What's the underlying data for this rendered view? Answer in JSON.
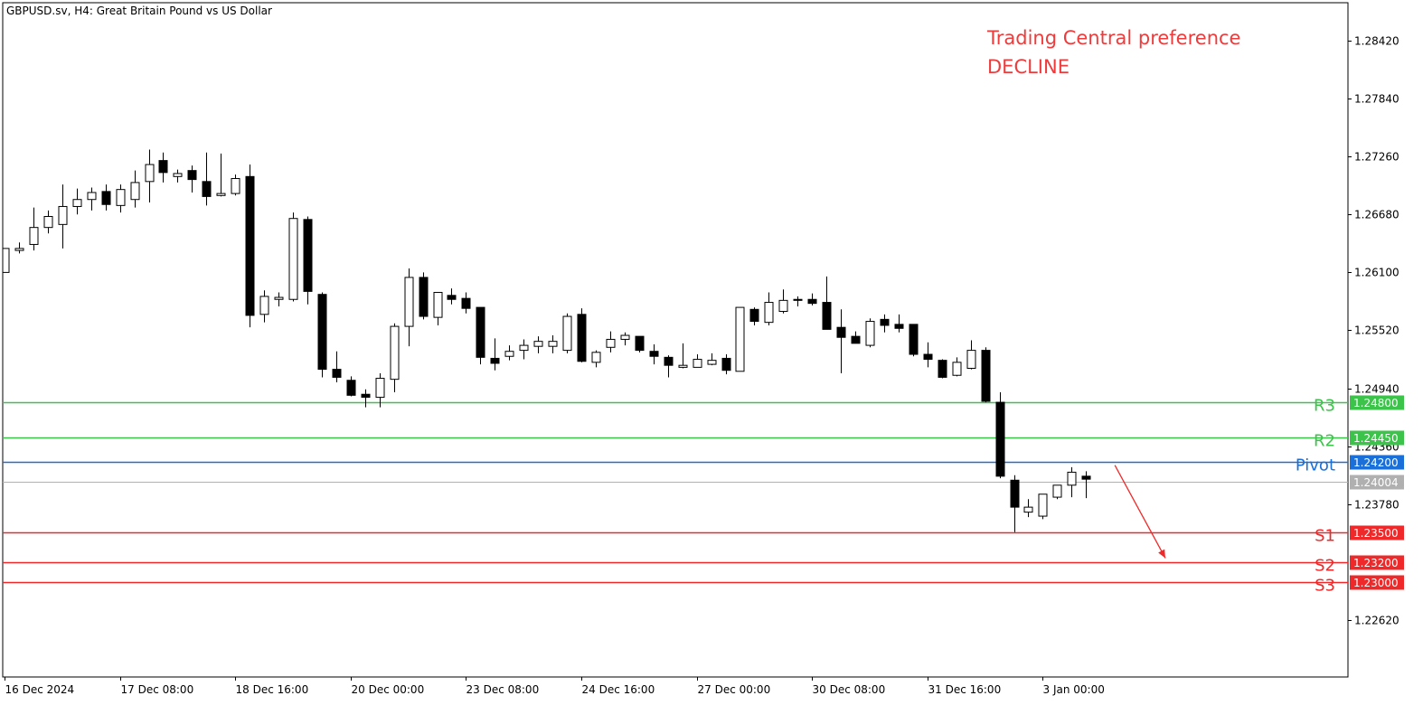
{
  "header": {
    "symbol_title": "GBPUSD.sv, H4:  Great Britain Pound vs US Dollar",
    "preference_title": "Trading Central preference",
    "preference_value": "DECLINE"
  },
  "colors": {
    "resistance": "#3cc34a",
    "pivot": "#1a6fd8",
    "support": "#ef2929",
    "current": "#b0b0b0",
    "arrow": "#ef2929",
    "preference_text": "#ef3b3b"
  },
  "chart_data": {
    "type": "candlestick",
    "symbol": "GBPUSD.sv",
    "timeframe": "H4",
    "y_ticks": [
      "1.28420",
      "1.27840",
      "1.27260",
      "1.26680",
      "1.26100",
      "1.25520",
      "1.24940",
      "1.24360",
      "1.23780",
      "1.22620"
    ],
    "ylim": [
      1.22,
      1.288
    ],
    "x_tick_labels": [
      "16 Dec 2024",
      "17 Dec 08:00",
      "18 Dec 16:00",
      "20 Dec 00:00",
      "23 Dec 08:00",
      "24 Dec 16:00",
      "27 Dec 00:00",
      "30 Dec 08:00",
      "31 Dec 16:00",
      "3 Jan 00:00"
    ],
    "x_tick_bar_index": [
      0,
      8,
      16,
      24,
      32,
      40,
      48,
      56,
      64,
      72
    ],
    "levels": [
      {
        "label": "R3",
        "value": 1.248,
        "value_label": "1.24800",
        "kind": "resistance"
      },
      {
        "label": "R2",
        "value": 1.2445,
        "value_label": "1.24450",
        "kind": "resistance"
      },
      {
        "label": "Pivot",
        "value": 1.242,
        "value_label": "1.24200",
        "kind": "pivot"
      },
      {
        "label": "",
        "value": 1.24004,
        "value_label": "1.24004",
        "kind": "current"
      },
      {
        "label": "S1",
        "value": 1.235,
        "value_label": "1.23500",
        "kind": "support"
      },
      {
        "label": "S2",
        "value": 1.232,
        "value_label": "1.23200",
        "kind": "support"
      },
      {
        "label": "S3",
        "value": 1.23,
        "value_label": "1.23000",
        "kind": "support"
      }
    ],
    "forecast_arrow": {
      "from_bar": 77,
      "from_value": 1.2417,
      "to_bar": 80.5,
      "to_value": 1.2324
    },
    "ohlc": [
      [
        1.261,
        1.2634,
        1.261,
        1.2634
      ],
      [
        1.2632,
        1.264,
        1.2629,
        1.2634
      ],
      [
        1.2638,
        1.2675,
        1.2632,
        1.2655
      ],
      [
        1.2655,
        1.2672,
        1.2649,
        1.2666
      ],
      [
        1.2658,
        1.2698,
        1.2634,
        1.2676
      ],
      [
        1.2676,
        1.2694,
        1.2668,
        1.2683
      ],
      [
        1.2683,
        1.2695,
        1.2672,
        1.269
      ],
      [
        1.2691,
        1.2698,
        1.2672,
        1.2678
      ],
      [
        1.2677,
        1.2698,
        1.267,
        1.2693
      ],
      [
        1.2683,
        1.2712,
        1.2675,
        1.27
      ],
      [
        1.2701,
        1.2733,
        1.268,
        1.2718
      ],
      [
        1.2722,
        1.273,
        1.27,
        1.271
      ],
      [
        1.2706,
        1.2713,
        1.27,
        1.2709
      ],
      [
        1.2712,
        1.2717,
        1.269,
        1.2703
      ],
      [
        1.2701,
        1.273,
        1.2677,
        1.2686
      ],
      [
        1.2687,
        1.2729,
        1.2686,
        1.2689
      ],
      [
        1.2689,
        1.2708,
        1.2687,
        1.2704
      ],
      [
        1.2706,
        1.2718,
        1.2555,
        1.2567
      ],
      [
        1.2568,
        1.2592,
        1.256,
        1.2586
      ],
      [
        1.2583,
        1.259,
        1.2576,
        1.2585
      ],
      [
        1.2583,
        1.267,
        1.2581,
        1.2664
      ],
      [
        1.2663,
        1.2666,
        1.2578,
        1.2591
      ],
      [
        1.2588,
        1.259,
        1.2505,
        1.2513
      ],
      [
        1.2513,
        1.2531,
        1.25,
        1.2505
      ],
      [
        1.2502,
        1.2506,
        1.2486,
        1.2487
      ],
      [
        1.2488,
        1.2493,
        1.2475,
        1.2485
      ],
      [
        1.2485,
        1.2509,
        1.2475,
        1.2504
      ],
      [
        1.2503,
        1.2559,
        1.249,
        1.2556
      ],
      [
        1.2556,
        1.2614,
        1.2536,
        1.2605
      ],
      [
        1.2605,
        1.261,
        1.2563,
        1.2566
      ],
      [
        1.2565,
        1.259,
        1.2557,
        1.259
      ],
      [
        1.2587,
        1.2594,
        1.2578,
        1.2583
      ],
      [
        1.2584,
        1.259,
        1.2569,
        1.2574
      ],
      [
        1.2575,
        1.2575,
        1.2518,
        1.2525
      ],
      [
        1.2524,
        1.2544,
        1.2512,
        1.2519
      ],
      [
        1.2526,
        1.2537,
        1.2522,
        1.2531
      ],
      [
        1.2532,
        1.2543,
        1.2523,
        1.2537
      ],
      [
        1.2536,
        1.2546,
        1.2529,
        1.2541
      ],
      [
        1.2536,
        1.2547,
        1.2529,
        1.2541
      ],
      [
        1.2532,
        1.2569,
        1.2529,
        1.2566
      ],
      [
        1.2568,
        1.2574,
        1.252,
        1.2521
      ],
      [
        1.252,
        1.2532,
        1.2515,
        1.253
      ],
      [
        1.2535,
        1.2551,
        1.253,
        1.2543
      ],
      [
        1.2543,
        1.255,
        1.2537,
        1.2547
      ],
      [
        1.2546,
        1.2546,
        1.253,
        1.2532
      ],
      [
        1.2531,
        1.2538,
        1.2518,
        1.2526
      ],
      [
        1.2525,
        1.2527,
        1.2505,
        1.2517
      ],
      [
        1.2515,
        1.2539,
        1.2514,
        1.2517
      ],
      [
        1.2515,
        1.2528,
        1.2515,
        1.2523
      ],
      [
        1.2518,
        1.2529,
        1.2517,
        1.2522
      ],
      [
        1.2524,
        1.2528,
        1.2508,
        1.2512
      ],
      [
        1.2511,
        1.2575,
        1.2511,
        1.2575
      ],
      [
        1.2573,
        1.2575,
        1.2557,
        1.2561
      ],
      [
        1.256,
        1.259,
        1.2557,
        1.258
      ],
      [
        1.2571,
        1.2593,
        1.2569,
        1.2582
      ],
      [
        1.2583,
        1.2586,
        1.2576,
        1.2582
      ],
      [
        1.2583,
        1.2589,
        1.2577,
        1.2579
      ],
      [
        1.258,
        1.2606,
        1.2553,
        1.2553
      ],
      [
        1.2555,
        1.2573,
        1.2509,
        1.2545
      ],
      [
        1.2546,
        1.2551,
        1.2539,
        1.2539
      ],
      [
        1.2537,
        1.2564,
        1.2535,
        1.2561
      ],
      [
        1.2563,
        1.2568,
        1.255,
        1.2557
      ],
      [
        1.2558,
        1.2568,
        1.255,
        1.2554
      ],
      [
        1.2558,
        1.2558,
        1.2526,
        1.2528
      ],
      [
        1.2528,
        1.254,
        1.2515,
        1.2523
      ],
      [
        1.2522,
        1.2523,
        1.2504,
        1.2505
      ],
      [
        1.2507,
        1.2525,
        1.2506,
        1.252
      ],
      [
        1.2514,
        1.2542,
        1.2513,
        1.2532
      ],
      [
        1.2532,
        1.2535,
        1.248,
        1.2481
      ],
      [
        1.248,
        1.249,
        1.2404,
        1.2406
      ],
      [
        1.2402,
        1.2407,
        1.235,
        1.2375
      ],
      [
        1.237,
        1.2383,
        1.2365,
        1.2375
      ],
      [
        1.2366,
        1.2385,
        1.2363,
        1.2388
      ],
      [
        1.2385,
        1.2397,
        1.2383,
        1.2397
      ],
      [
        1.2397,
        1.2415,
        1.2385,
        1.241
      ],
      [
        1.2406,
        1.2411,
        1.2384,
        1.2403
      ]
    ]
  }
}
